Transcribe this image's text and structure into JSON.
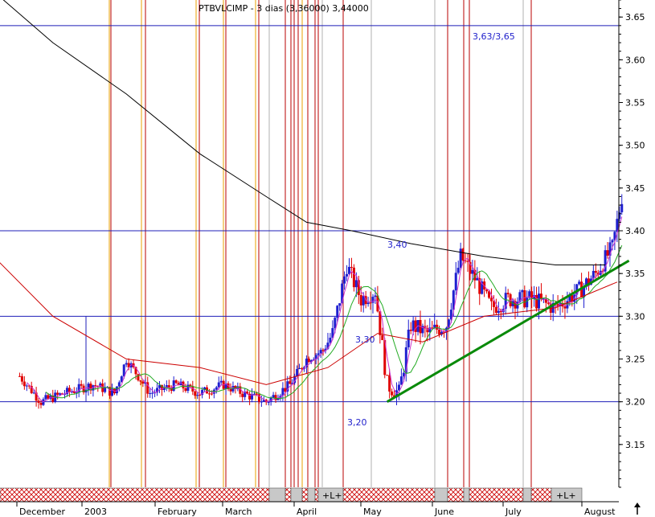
{
  "header": {
    "title": "PTBVLCIMP - 3 dias (3,36000) 3,44000"
  },
  "colors": {
    "hline": "#1f1fb8",
    "up": "#1f1fd0",
    "down": "#e00000",
    "ma_short": "#cc33cc",
    "ma_mid": "#22aa22",
    "ma_long": "#cc0000",
    "ma_200": "#000000",
    "trend": "#0a8a0a",
    "vline_red": "#b80000",
    "vline_orange": "#e8a000",
    "vline_gray": "#b0b0b0",
    "strip_hatch": "#cc0000",
    "strip_gray": "#c8c8c8"
  },
  "chart_data": {
    "type": "candlestick",
    "title": "PTBVLCIMP - 3 dias (3,36000) 3,44000",
    "xlabel": "",
    "ylabel": "",
    "ylim": [
      3.1,
      3.705
    ],
    "y_ticks": [
      3.15,
      3.2,
      3.25,
      3.3,
      3.35,
      3.4,
      3.45,
      3.5,
      3.55,
      3.6,
      3.65
    ],
    "y_tick_labels": [
      "3.15",
      "3.20",
      "3.25",
      "3.30",
      "3.35",
      "3.40",
      "3.45",
      "3.50",
      "3.55",
      "3.60",
      "3.65"
    ],
    "x_labels": [
      "December",
      "2003",
      "February",
      "March",
      "April",
      "May",
      "June",
      "July",
      "August"
    ],
    "horizontal_lines": [
      3.64,
      3.4,
      3.3,
      3.2
    ],
    "annotations": [
      "3,63/3,65",
      "3,40",
      "3,30",
      "3,20"
    ],
    "trendline": {
      "from": {
        "date": "2003-05-05",
        "value": 3.2
      },
      "to": {
        "date": "2003-08-15",
        "value": 3.365
      }
    },
    "strip_markers": [
      "+L+",
      "+L+"
    ],
    "series": [
      {
        "name": "PTBVLCIMP",
        "close_path": [
          [
            "2002-12-01",
            3.23
          ],
          [
            "2002-12-10",
            3.2
          ],
          [
            "2002-12-20",
            3.21
          ],
          [
            "2003-01-01",
            3.22
          ],
          [
            "2003-01-10",
            3.21
          ],
          [
            "2003-01-15",
            3.25
          ],
          [
            "2003-01-25",
            3.21
          ],
          [
            "2003-02-05",
            3.22
          ],
          [
            "2003-02-15",
            3.21
          ],
          [
            "2003-02-25",
            3.22
          ],
          [
            "2003-03-05",
            3.21
          ],
          [
            "2003-03-15",
            3.2
          ],
          [
            "2003-03-25",
            3.22
          ],
          [
            "2003-04-01",
            3.25
          ],
          [
            "2003-04-08",
            3.26
          ],
          [
            "2003-04-12",
            3.28
          ],
          [
            "2003-04-18",
            3.36
          ],
          [
            "2003-04-24",
            3.32
          ],
          [
            "2003-04-30",
            3.33
          ],
          [
            "2003-05-05",
            3.22
          ],
          [
            "2003-05-10",
            3.21
          ],
          [
            "2003-05-15",
            3.29
          ],
          [
            "2003-05-22",
            3.28
          ],
          [
            "2003-05-30",
            3.29
          ],
          [
            "2003-06-05",
            3.37
          ],
          [
            "2003-06-12",
            3.34
          ],
          [
            "2003-06-18",
            3.31
          ],
          [
            "2003-06-25",
            3.32
          ],
          [
            "2003-07-05",
            3.32
          ],
          [
            "2003-07-15",
            3.31
          ],
          [
            "2003-07-25",
            3.33
          ],
          [
            "2003-08-01",
            3.35
          ],
          [
            "2003-08-08",
            3.38
          ],
          [
            "2003-08-12",
            3.44
          ]
        ]
      },
      {
        "name": "MA200",
        "values": [
          [
            "2002-11-20",
            3.68
          ],
          [
            "2002-12-15",
            3.62
          ],
          [
            "2003-01-15",
            3.56
          ],
          [
            "2003-02-15",
            3.49
          ],
          [
            "2003-03-15",
            3.44
          ],
          [
            "2003-04-01",
            3.41
          ],
          [
            "2003-04-20",
            3.4
          ],
          [
            "2003-05-15",
            3.385
          ],
          [
            "2003-06-15",
            3.37
          ],
          [
            "2003-07-15",
            3.36
          ],
          [
            "2003-08-05",
            3.36
          ]
        ]
      },
      {
        "name": "MA-long",
        "values": [
          [
            "2002-11-20",
            3.37
          ],
          [
            "2002-12-15",
            3.3
          ],
          [
            "2003-01-15",
            3.25
          ],
          [
            "2003-02-15",
            3.24
          ],
          [
            "2003-03-15",
            3.22
          ],
          [
            "2003-04-10",
            3.24
          ],
          [
            "2003-05-01",
            3.28
          ],
          [
            "2003-05-20",
            3.27
          ],
          [
            "2003-06-15",
            3.3
          ],
          [
            "2003-07-15",
            3.31
          ],
          [
            "2003-08-10",
            3.34
          ]
        ]
      }
    ]
  }
}
